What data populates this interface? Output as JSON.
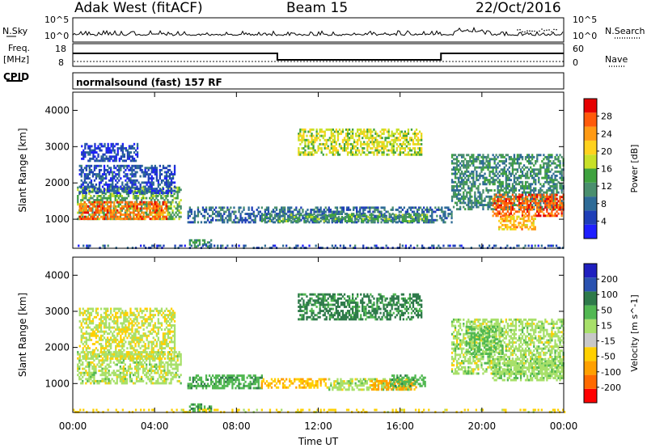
{
  "header": {
    "site": "Adak West (fitACF)",
    "beam": "Beam 15",
    "date": "22/Oct/2016"
  },
  "strips": {
    "nsky_label": "N.Sky",
    "nsky_ticks": [
      "10^5",
      "10^0"
    ],
    "nsearch_label": "N.Search",
    "nsearch_ticks": [
      "10^5",
      "10^0"
    ],
    "freq_label": "Freq.",
    "freq_unit": "[MHz]",
    "freq_ticks": [
      "18",
      "8"
    ],
    "nave_label": "Nave",
    "nave_ticks": [
      "60",
      "0"
    ],
    "cpid_label": "CPID",
    "cpid_text": "normalsound (fast) 157 RF"
  },
  "colors": {
    "power": [
      "#1f1fff",
      "#1f3fb8",
      "#2e6b97",
      "#4a8f6e",
      "#3fa23f",
      "#c8e028",
      "#ffd21e",
      "#ff9a14",
      "#ff5a0a",
      "#e60000"
    ],
    "velocity": [
      "#ff0000",
      "#ff6a00",
      "#ffa000",
      "#ffd000",
      "#c8c8c8",
      "#a8e06a",
      "#52b852",
      "#2e7a4a",
      "#2a52b0",
      "#1f1fbf"
    ]
  },
  "chart_data": [
    {
      "type": "heatmap",
      "title": "Power",
      "ylabel": "Slant Range [km]",
      "yticks": [
        "1000",
        "2000",
        "3000",
        "4000"
      ],
      "ylim": [
        200,
        4500
      ],
      "colorbar": {
        "label": "Power [dB]",
        "ticks": [
          "28",
          "24",
          "20",
          "16",
          "12",
          "8",
          "4"
        ],
        "range": [
          0,
          32
        ]
      },
      "regions": [
        {
          "t": [
            0.2,
            5.3
          ],
          "r": [
            1000,
            1900
          ],
          "level": 14
        },
        {
          "t": [
            0.3,
            4.6
          ],
          "r": [
            1000,
            1500
          ],
          "level": 26
        },
        {
          "t": [
            0.3,
            5.0
          ],
          "r": [
            1700,
            2500
          ],
          "level": 6
        },
        {
          "t": [
            0.4,
            3.2
          ],
          "r": [
            2600,
            3100
          ],
          "level": 5
        },
        {
          "t": [
            5.6,
            18.5
          ],
          "r": [
            900,
            1350
          ],
          "level": 8
        },
        {
          "t": [
            9.2,
            17.3
          ],
          "r": [
            950,
            1150
          ],
          "level": 13
        },
        {
          "t": [
            11.0,
            17.0
          ],
          "r": [
            2800,
            3500
          ],
          "level": 18
        },
        {
          "t": [
            5.6,
            6.8
          ],
          "r": [
            250,
            450
          ],
          "level": 12
        },
        {
          "t": [
            18.5,
            24.0
          ],
          "r": [
            1300,
            2800
          ],
          "level": 11
        },
        {
          "t": [
            20.5,
            24.0
          ],
          "r": [
            1100,
            1700
          ],
          "level": 27
        },
        {
          "t": [
            20.8,
            22.6
          ],
          "r": [
            700,
            1100
          ],
          "level": 22
        },
        {
          "t": [
            0.0,
            24.0
          ],
          "r": [
            200,
            300
          ],
          "level": 6
        }
      ]
    },
    {
      "type": "heatmap",
      "title": "Velocity",
      "xlabel": "Time UT",
      "xticks": [
        "00:00",
        "04:00",
        "08:00",
        "12:00",
        "16:00",
        "20:00",
        "00:00"
      ],
      "xlim": [
        0,
        24
      ],
      "ylabel": "Slant Range [km]",
      "yticks": [
        "1000",
        "2000",
        "3000",
        "4000"
      ],
      "ylim": [
        200,
        4500
      ],
      "colorbar": {
        "label": "Velocity [m s^-1]",
        "ticks": [
          "200",
          "100",
          "50",
          "15",
          "-15",
          "-50",
          "-100",
          "-200"
        ],
        "range": [
          -250,
          250
        ]
      },
      "regions": [
        {
          "t": [
            0.2,
            5.3
          ],
          "r": [
            1000,
            1900
          ],
          "level": 0
        },
        {
          "t": [
            0.3,
            5.0
          ],
          "r": [
            1700,
            3100
          ],
          "level": -10
        },
        {
          "t": [
            5.6,
            9.2
          ],
          "r": [
            900,
            1250
          ],
          "level": 40
        },
        {
          "t": [
            9.2,
            12.5
          ],
          "r": [
            900,
            1150
          ],
          "level": -45
        },
        {
          "t": [
            12.5,
            16.5
          ],
          "r": [
            850,
            1150
          ],
          "level": 0
        },
        {
          "t": [
            14.5,
            16.8
          ],
          "r": [
            850,
            1100
          ],
          "level": -60
        },
        {
          "t": [
            15.5,
            17.2
          ],
          "r": [
            950,
            1250
          ],
          "level": 35
        },
        {
          "t": [
            11.0,
            17.0
          ],
          "r": [
            2800,
            3500
          ],
          "level": 60
        },
        {
          "t": [
            5.6,
            6.8
          ],
          "r": [
            250,
            450
          ],
          "level": 45
        },
        {
          "t": [
            18.5,
            24.0
          ],
          "r": [
            1300,
            2800
          ],
          "level": 0
        },
        {
          "t": [
            19.2,
            21.0
          ],
          "r": [
            1800,
            2600
          ],
          "level": 25
        },
        {
          "t": [
            20.5,
            24.0
          ],
          "r": [
            1100,
            1700
          ],
          "level": 5
        },
        {
          "t": [
            0.0,
            24.0
          ],
          "r": [
            200,
            300
          ],
          "level": -30
        }
      ]
    }
  ]
}
